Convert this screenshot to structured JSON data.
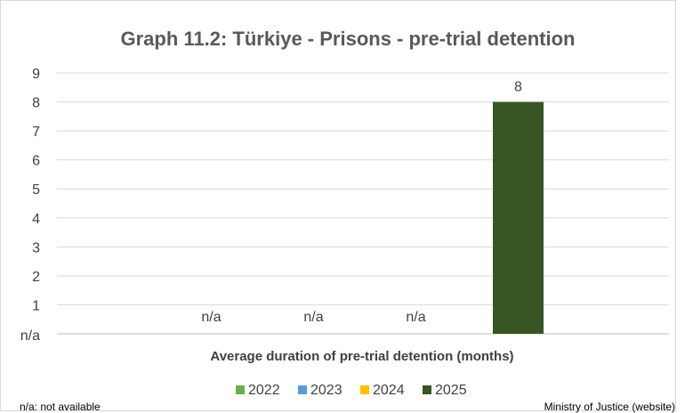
{
  "chart_data": {
    "type": "bar",
    "title": "Graph 11.2: Türkiye - Prisons - pre-trial detention",
    "xlabel": "Average duration of pre-trial detention (months)",
    "ylabel": "",
    "categories": [
      "Average duration of pre-trial detention (months)"
    ],
    "y_tick_labels": [
      "n/a",
      "1",
      "2",
      "3",
      "4",
      "5",
      "6",
      "7",
      "8",
      "9"
    ],
    "ylim": [
      0,
      9
    ],
    "grid": true,
    "legend_position": "bottom",
    "series": [
      {
        "name": "2022",
        "values": [
          null
        ],
        "data_label": "n/a",
        "color": "#70ad47"
      },
      {
        "name": "2023",
        "values": [
          null
        ],
        "data_label": "n/a",
        "color": "#5b9bd5"
      },
      {
        "name": "2024",
        "values": [
          null
        ],
        "data_label": "n/a",
        "color": "#ffc000"
      },
      {
        "name": "2025",
        "values": [
          8
        ],
        "data_label": "8",
        "color": "#375623"
      }
    ]
  },
  "footnotes": {
    "left": "n/a: not available",
    "right": "Ministry of Justice (website)"
  }
}
